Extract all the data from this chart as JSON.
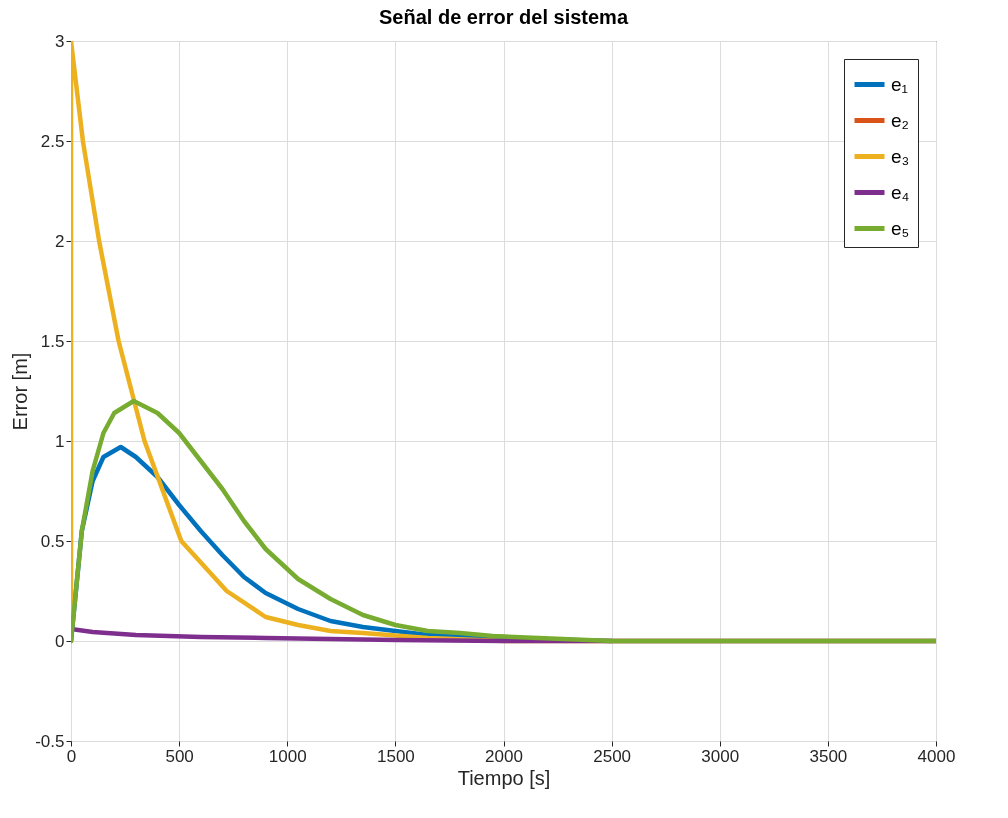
{
  "chart_data": {
    "type": "line",
    "title": "Señal de error del sistema",
    "xlabel": "Tiempo [s]",
    "ylabel": "Error [m]",
    "xlim": [
      0,
      4000
    ],
    "xticks": [
      0,
      500,
      1000,
      1500,
      2000,
      2500,
      3000,
      3500,
      4000
    ],
    "ylim": [
      -0.5,
      3
    ],
    "yticks": [
      -0.5,
      0,
      0.5,
      1,
      1.5,
      2,
      2.5,
      3
    ],
    "grid": true,
    "legend": "top right",
    "series": [
      {
        "name": "e₁",
        "color": "#0072bd",
        "x": [
          0,
          50,
          100,
          150,
          230,
          300,
          400,
          500,
          600,
          700,
          800,
          900,
          1050,
          1200,
          1350,
          1500,
          1650,
          1950,
          2500
        ],
        "values": [
          0,
          0.55,
          0.8,
          0.92,
          0.97,
          0.92,
          0.82,
          0.68,
          0.55,
          0.43,
          0.32,
          0.24,
          0.16,
          0.1,
          0.07,
          0.05,
          0.03,
          0.015,
          0
        ]
      },
      {
        "name": "e₂",
        "color": "#d95319"
      },
      {
        "name": "e₃",
        "color": "#edb120",
        "x": [
          0,
          0,
          55,
          130,
          220,
          340,
          510,
          720,
          900,
          1050,
          1200,
          1350,
          1650,
          2000,
          2500,
          4000
        ],
        "values": [
          0,
          3,
          2.5,
          2,
          1.5,
          1,
          0.5,
          0.25,
          0.12,
          0.08,
          0.05,
          0.04,
          0.015,
          0,
          0,
          0
        ]
      },
      {
        "name": "e₄",
        "color": "#7e2f8e",
        "x": [
          0,
          100,
          300,
          600,
          900,
          1500,
          2000,
          4000
        ],
        "values": [
          0.06,
          0.045,
          0.03,
          0.02,
          0.015,
          0.005,
          0,
          0
        ]
      },
      {
        "name": "e₅",
        "color": "#77ac30",
        "x": [
          0,
          50,
          100,
          150,
          200,
          290,
          400,
          500,
          600,
          700,
          800,
          900,
          1050,
          1200,
          1350,
          1500,
          1650,
          1800,
          1950,
          2500,
          3000,
          4000
        ],
        "values": [
          0,
          0.55,
          0.85,
          1.04,
          1.14,
          1.2,
          1.14,
          1.04,
          0.9,
          0.76,
          0.6,
          0.46,
          0.31,
          0.21,
          0.13,
          0.08,
          0.05,
          0.04,
          0.025,
          0,
          0,
          0
        ]
      }
    ]
  }
}
